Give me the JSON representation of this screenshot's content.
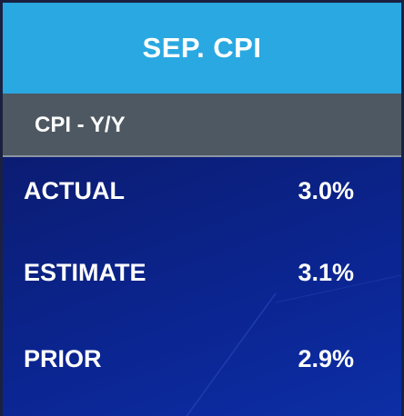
{
  "header": {
    "title": "SEP. CPI"
  },
  "subheader": {
    "title": "CPI - Y/Y"
  },
  "rows": [
    {
      "label": "ACTUAL",
      "value": "3.0%"
    },
    {
      "label": "ESTIMATE",
      "value": "3.1%"
    },
    {
      "label": "PRIOR",
      "value": "2.9%"
    }
  ]
}
